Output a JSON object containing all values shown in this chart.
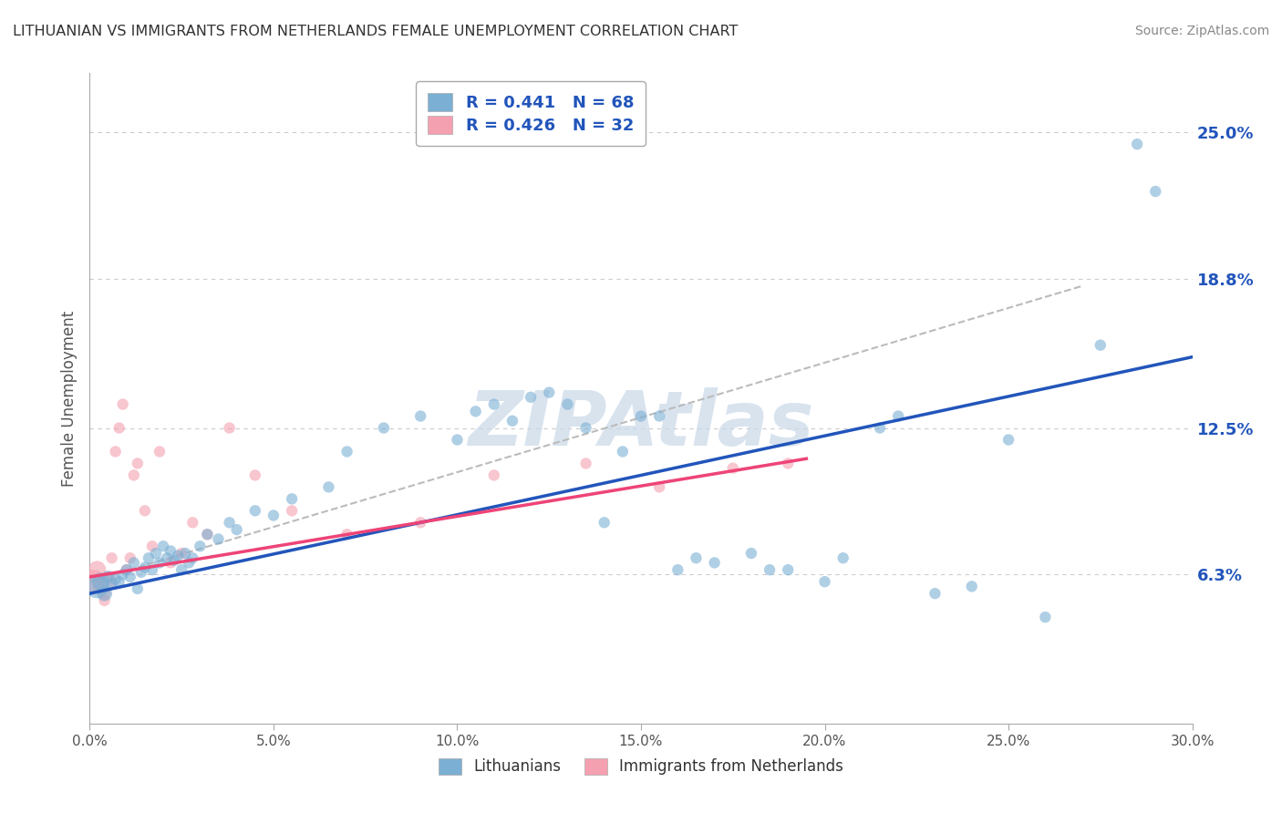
{
  "title": "LITHUANIAN VS IMMIGRANTS FROM NETHERLANDS FEMALE UNEMPLOYMENT CORRELATION CHART",
  "source": "Source: ZipAtlas.com",
  "ylabel": "Female Unemployment",
  "xlabel": "",
  "xlim": [
    0.0,
    30.0
  ],
  "ylim": [
    0.0,
    27.5
  ],
  "yticks": [
    6.3,
    12.5,
    18.8,
    25.0
  ],
  "xtick_vals": [
    0.0,
    5.0,
    10.0,
    15.0,
    20.0,
    25.0,
    30.0
  ],
  "legend1_R": "0.441",
  "legend1_N": "68",
  "legend2_R": "0.426",
  "legend2_N": "32",
  "legend_label1": "Lithuanians",
  "legend_label2": "Immigrants from Netherlands",
  "blue_color": "#7BAFD4",
  "pink_color": "#F4A0B0",
  "blue_line_color": "#2255BB",
  "pink_line_color": "#EE4477",
  "gray_dash_color": "#BBBBBB",
  "watermark": "ZIPAtlas",
  "blue_scatter_x": [
    0.2,
    0.3,
    0.4,
    0.5,
    0.6,
    0.7,
    0.8,
    0.9,
    1.0,
    1.1,
    1.2,
    1.3,
    1.4,
    1.5,
    1.6,
    1.7,
    1.8,
    1.9,
    2.0,
    2.1,
    2.2,
    2.3,
    2.4,
    2.5,
    2.6,
    2.7,
    2.8,
    3.0,
    3.2,
    3.5,
    3.8,
    4.0,
    4.5,
    5.0,
    5.5,
    6.5,
    7.0,
    8.0,
    9.0,
    10.0,
    11.0,
    11.5,
    12.5,
    13.0,
    14.0,
    15.0,
    16.5,
    18.5,
    20.0,
    21.5,
    23.0,
    25.0,
    27.5,
    10.5,
    12.0,
    13.5,
    14.5,
    15.5,
    16.0,
    17.0,
    18.0,
    19.0,
    20.5,
    22.0,
    24.0,
    26.0,
    28.5,
    29.0
  ],
  "blue_scatter_y": [
    5.8,
    6.0,
    5.5,
    6.2,
    5.9,
    6.1,
    6.0,
    6.3,
    6.5,
    6.2,
    6.8,
    5.7,
    6.4,
    6.6,
    7.0,
    6.5,
    7.2,
    6.8,
    7.5,
    7.0,
    7.3,
    6.9,
    7.1,
    6.5,
    7.2,
    6.8,
    7.0,
    7.5,
    8.0,
    7.8,
    8.5,
    8.2,
    9.0,
    8.8,
    9.5,
    10.0,
    11.5,
    12.5,
    13.0,
    12.0,
    13.5,
    12.8,
    14.0,
    13.5,
    8.5,
    13.0,
    7.0,
    6.5,
    6.0,
    12.5,
    5.5,
    12.0,
    16.0,
    13.2,
    13.8,
    12.5,
    11.5,
    13.0,
    6.5,
    6.8,
    7.2,
    6.5,
    7.0,
    13.0,
    5.8,
    4.5,
    24.5,
    22.5
  ],
  "blue_scatter_sizes": [
    350,
    200,
    150,
    100,
    80,
    80,
    80,
    80,
    80,
    80,
    80,
    80,
    80,
    80,
    80,
    80,
    80,
    80,
    80,
    80,
    80,
    80,
    80,
    80,
    80,
    80,
    80,
    80,
    80,
    80,
    80,
    80,
    80,
    80,
    80,
    80,
    80,
    80,
    80,
    80,
    80,
    80,
    80,
    80,
    80,
    80,
    80,
    80,
    80,
    80,
    80,
    80,
    80,
    80,
    80,
    80,
    80,
    80,
    80,
    80,
    80,
    80,
    80,
    80,
    80,
    80,
    80,
    80
  ],
  "pink_scatter_x": [
    0.1,
    0.2,
    0.3,
    0.4,
    0.5,
    0.6,
    0.7,
    0.8,
    0.9,
    1.0,
    1.1,
    1.2,
    1.3,
    1.5,
    1.7,
    1.9,
    2.2,
    2.5,
    2.8,
    3.2,
    3.8,
    4.5,
    5.5,
    7.0,
    9.0,
    11.0,
    13.5,
    15.5,
    17.5,
    19.0,
    0.6,
    0.4
  ],
  "pink_scatter_y": [
    6.0,
    6.5,
    5.8,
    5.5,
    6.2,
    6.0,
    11.5,
    12.5,
    13.5,
    6.5,
    7.0,
    10.5,
    11.0,
    9.0,
    7.5,
    11.5,
    6.8,
    7.2,
    8.5,
    8.0,
    12.5,
    10.5,
    9.0,
    8.0,
    8.5,
    10.5,
    11.0,
    10.0,
    10.8,
    11.0,
    7.0,
    5.2
  ],
  "pink_scatter_sizes": [
    350,
    200,
    150,
    100,
    80,
    80,
    80,
    80,
    80,
    80,
    80,
    80,
    80,
    80,
    80,
    80,
    80,
    80,
    80,
    80,
    80,
    80,
    80,
    80,
    80,
    80,
    80,
    80,
    80,
    80,
    80,
    80
  ],
  "blue_trend_x": [
    0.0,
    30.0
  ],
  "blue_trend_y": [
    5.5,
    15.5
  ],
  "pink_trend_x": [
    0.0,
    19.5
  ],
  "pink_trend_y": [
    6.2,
    11.2
  ],
  "gray_trend_x": [
    0.0,
    27.0
  ],
  "gray_trend_y": [
    6.0,
    18.5
  ]
}
